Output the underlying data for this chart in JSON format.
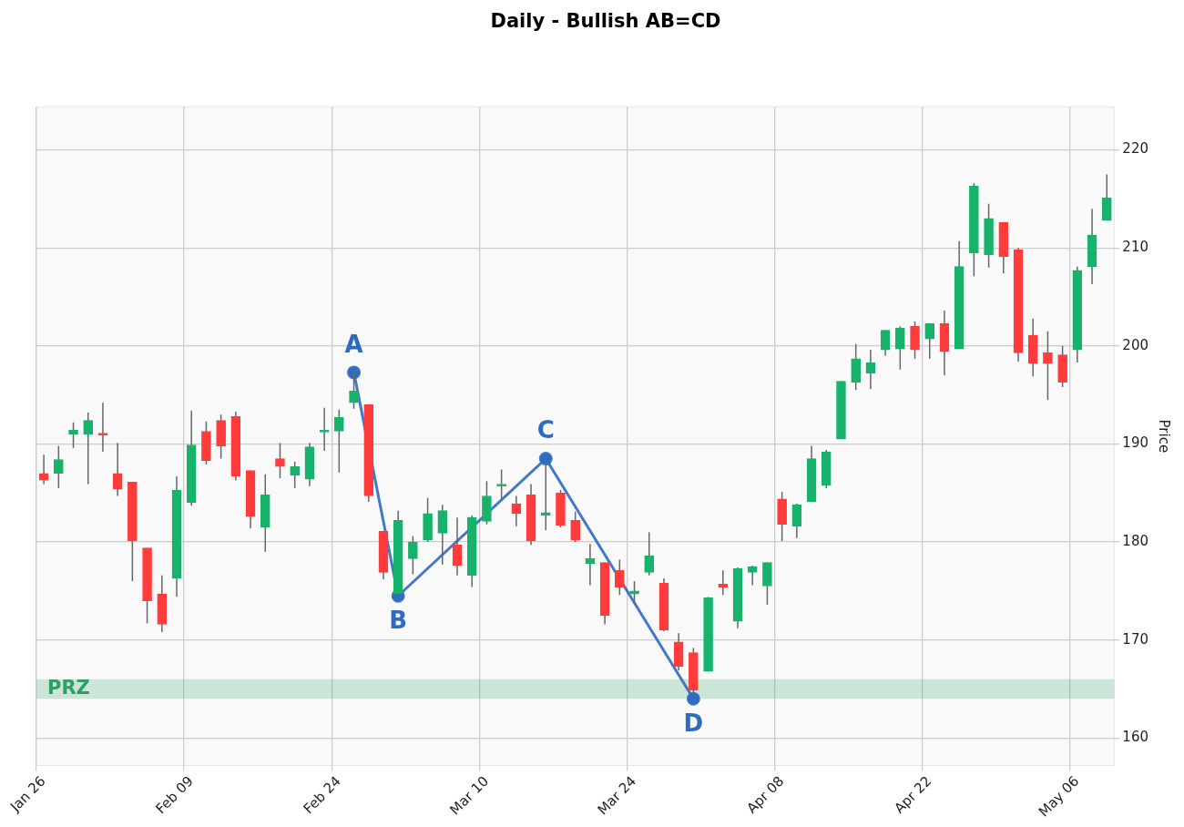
{
  "chart_data": {
    "type": "candlestick",
    "title": "Daily - Bullish AB=CD",
    "ylabel": "Price",
    "ylim": [
      157.2,
      224.4
    ],
    "yticks": [
      160,
      170,
      180,
      190,
      200,
      210,
      220
    ],
    "grid": true,
    "legend": false,
    "categories": [
      "Jan 26",
      null,
      null,
      null,
      null,
      null,
      null,
      null,
      null,
      null,
      "Feb 09",
      null,
      null,
      null,
      null,
      null,
      null,
      null,
      null,
      null,
      "Feb 24",
      null,
      null,
      null,
      null,
      null,
      null,
      null,
      null,
      null,
      "Mar 10",
      null,
      null,
      null,
      null,
      null,
      null,
      null,
      null,
      null,
      "Mar 24",
      null,
      null,
      null,
      null,
      null,
      null,
      null,
      null,
      null,
      "Apr 08",
      null,
      null,
      null,
      null,
      null,
      null,
      null,
      null,
      null,
      "Apr 22",
      null,
      null,
      null,
      null,
      null,
      null,
      null,
      null,
      null,
      "May 06",
      null,
      null
    ],
    "ohlc": [
      [
        187.0,
        188.9,
        185.9,
        186.3
      ],
      [
        187.0,
        189.8,
        185.5,
        188.4
      ],
      [
        191.0,
        192.2,
        189.6,
        191.4
      ],
      [
        191.0,
        193.2,
        185.9,
        192.4
      ],
      [
        191.1,
        194.2,
        189.2,
        190.9
      ],
      [
        187.0,
        190.1,
        184.7,
        185.4
      ],
      [
        186.1,
        186.1,
        176.0,
        180.1
      ],
      [
        179.4,
        179.4,
        171.7,
        174.0
      ],
      [
        174.7,
        176.6,
        170.8,
        171.6
      ],
      [
        176.3,
        186.7,
        174.4,
        185.3
      ],
      [
        184.0,
        193.4,
        183.7,
        189.9
      ],
      [
        191.3,
        192.3,
        187.9,
        188.3
      ],
      [
        192.4,
        193.0,
        188.5,
        189.8
      ],
      [
        192.8,
        193.3,
        186.3,
        186.7
      ],
      [
        187.3,
        187.3,
        181.4,
        182.6
      ],
      [
        181.5,
        186.9,
        179.0,
        184.8
      ],
      [
        188.5,
        190.1,
        186.5,
        187.7
      ],
      [
        186.8,
        188.2,
        185.5,
        187.7
      ],
      [
        186.4,
        190.1,
        185.7,
        189.7
      ],
      [
        191.2,
        193.7,
        189.3,
        191.4
      ],
      [
        191.3,
        193.5,
        187.1,
        192.7
      ],
      [
        194.2,
        197.3,
        193.6,
        195.4
      ],
      [
        194.0,
        194.0,
        184.1,
        184.7
      ],
      [
        181.1,
        181.1,
        176.2,
        176.9
      ],
      [
        174.7,
        183.2,
        174.5,
        182.2
      ],
      [
        178.3,
        180.6,
        176.7,
        180.0
      ],
      [
        180.2,
        184.5,
        180.0,
        182.9
      ],
      [
        180.9,
        183.8,
        177.7,
        183.2
      ],
      [
        179.7,
        182.5,
        176.6,
        177.6
      ],
      [
        176.6,
        182.7,
        175.4,
        182.5
      ],
      [
        182.1,
        186.2,
        181.8,
        184.7
      ],
      [
        185.7,
        187.4,
        184.4,
        185.9
      ],
      [
        183.9,
        184.7,
        181.6,
        182.9
      ],
      [
        184.8,
        185.9,
        179.7,
        180.1
      ],
      [
        182.7,
        188.5,
        181.2,
        183.0
      ],
      [
        185.0,
        185.3,
        181.5,
        181.7
      ],
      [
        182.2,
        183.1,
        180.0,
        180.2
      ],
      [
        177.8,
        179.8,
        175.6,
        178.3
      ],
      [
        177.9,
        177.9,
        171.6,
        172.5
      ],
      [
        177.1,
        178.2,
        174.6,
        175.4
      ],
      [
        174.7,
        176.0,
        173.7,
        175.0
      ],
      [
        176.9,
        181.0,
        176.6,
        178.6
      ],
      [
        175.8,
        176.3,
        170.9,
        171.0
      ],
      [
        169.8,
        170.7,
        166.9,
        167.3
      ],
      [
        168.7,
        169.2,
        164.0,
        164.9
      ],
      [
        166.8,
        174.4,
        166.8,
        174.3
      ],
      [
        175.7,
        177.1,
        174.6,
        175.4
      ],
      [
        171.9,
        177.4,
        171.2,
        177.3
      ],
      [
        176.9,
        177.6,
        175.6,
        177.5
      ],
      [
        175.5,
        177.9,
        173.6,
        177.9
      ],
      [
        184.4,
        185.1,
        180.1,
        181.8
      ],
      [
        181.6,
        183.9,
        180.4,
        183.8
      ],
      [
        184.1,
        189.8,
        184.1,
        188.5
      ],
      [
        185.8,
        189.4,
        185.5,
        189.2
      ],
      [
        190.5,
        196.4,
        190.5,
        196.4
      ],
      [
        196.3,
        200.2,
        195.5,
        198.7
      ],
      [
        197.2,
        199.6,
        195.6,
        198.3
      ],
      [
        199.6,
        201.6,
        199.0,
        201.6
      ],
      [
        199.7,
        202.0,
        197.6,
        201.8
      ],
      [
        202.0,
        202.5,
        198.7,
        199.6
      ],
      [
        200.7,
        202.3,
        198.7,
        202.3
      ],
      [
        202.3,
        203.6,
        197.0,
        199.4
      ],
      [
        199.7,
        210.7,
        199.7,
        208.1
      ],
      [
        209.5,
        216.6,
        207.1,
        216.3
      ],
      [
        209.3,
        214.5,
        208.0,
        213.0
      ],
      [
        212.6,
        212.6,
        207.4,
        209.1
      ],
      [
        209.8,
        210.0,
        198.4,
        199.3
      ],
      [
        201.1,
        202.8,
        196.9,
        198.2
      ],
      [
        199.3,
        201.5,
        194.5,
        198.2
      ],
      [
        199.1,
        200.0,
        195.8,
        196.3
      ],
      [
        199.6,
        208.1,
        198.3,
        207.7
      ],
      [
        208.1,
        214.0,
        206.3,
        211.3
      ],
      [
        212.8,
        217.5,
        212.8,
        215.1
      ]
    ],
    "colors": [
      "#ff3b3b",
      "#17b26b",
      "#17b26b",
      "#17b26b",
      "#ff3b3b",
      "#ff3b3b",
      "#ff3b3b",
      "#ff3b3b",
      "#ff3b3b",
      "#17b26b",
      "#17b26b",
      "#ff3b3b",
      "#ff3b3b",
      "#ff3b3b",
      "#ff3b3b",
      "#17b26b",
      "#ff3b3b",
      "#17b26b",
      "#17b26b",
      "#17b26b",
      "#17b26b",
      "#17b26b",
      "#ff3b3b",
      "#ff3b3b",
      "#17b26b",
      "#17b26b",
      "#17b26b",
      "#17b26b",
      "#ff3b3b",
      "#17b26b",
      "#17b26b",
      "#17b26b",
      "#ff3b3b",
      "#ff3b3b",
      "#17b26b",
      "#ff3b3b",
      "#ff3b3b",
      "#17b26b",
      "#ff3b3b",
      "#ff3b3b",
      "#17b26b",
      "#17b26b",
      "#ff3b3b",
      "#ff3b3b",
      "#ff3b3b",
      "#17b26b",
      "#ff3b3b",
      "#17b26b",
      "#17b26b",
      "#17b26b",
      "#ff3b3b",
      "#17b26b",
      "#17b26b",
      "#17b26b",
      "#17b26b",
      "#17b26b",
      "#17b26b",
      "#17b26b",
      "#17b26b",
      "#ff3b3b",
      "#17b26b",
      "#ff3b3b",
      "#17b26b",
      "#17b26b",
      "#17b26b",
      "#ff3b3b",
      "#ff3b3b",
      "#ff3b3b",
      "#ff3b3b",
      "#ff3b3b",
      "#17b26b",
      "#17b26b",
      "#17b26b"
    ],
    "series": [
      {
        "type": "line",
        "color": "#2f6cbf",
        "marker": "circle",
        "values": [
          null,
          null,
          null,
          null,
          null,
          null,
          null,
          null,
          null,
          null,
          null,
          null,
          null,
          null,
          null,
          null,
          null,
          null,
          null,
          null,
          null,
          197.3,
          null,
          null,
          174.5,
          null,
          null,
          null,
          null,
          null,
          null,
          null,
          null,
          null,
          188.5,
          null,
          null,
          null,
          null,
          null,
          null,
          null,
          null,
          null,
          164.0,
          null,
          null,
          null,
          null,
          null,
          null,
          null,
          null,
          null,
          null,
          null,
          null,
          null,
          null,
          null,
          null,
          null,
          null,
          null,
          null,
          null,
          null,
          null,
          null,
          null,
          null,
          null,
          null
        ],
        "value_labels": [
          null,
          null,
          null,
          null,
          null,
          null,
          null,
          null,
          null,
          null,
          null,
          null,
          null,
          null,
          null,
          null,
          null,
          null,
          null,
          null,
          null,
          "A",
          null,
          null,
          "B",
          null,
          null,
          null,
          null,
          null,
          null,
          null,
          null,
          null,
          "C",
          null,
          null,
          null,
          null,
          null,
          null,
          null,
          null,
          null,
          "D",
          null,
          null,
          null,
          null,
          null,
          null,
          null,
          null,
          null,
          null,
          null,
          null,
          null,
          null,
          null,
          null,
          null,
          null,
          null,
          null,
          null,
          null,
          null,
          null,
          null,
          null,
          null,
          null
        ]
      }
    ],
    "bands": [
      {
        "axis": "y",
        "from": 164.0,
        "to": 166.0,
        "label": "PRZ",
        "color": "#2ca066"
      }
    ]
  }
}
